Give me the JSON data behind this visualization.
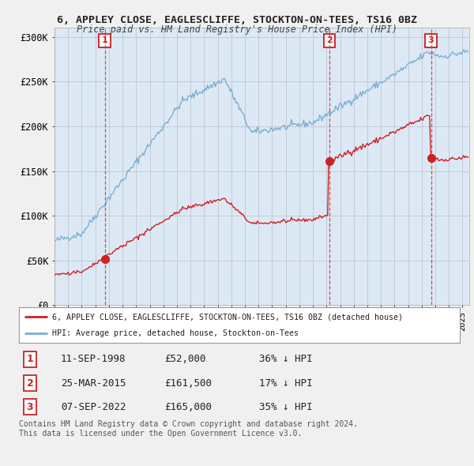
{
  "title_line1": "6, APPLEY CLOSE, EAGLESCLIFFE, STOCKTON-ON-TEES, TS16 0BZ",
  "title_line2": "Price paid vs. HM Land Registry's House Price Index (HPI)",
  "ylim": [
    0,
    310000
  ],
  "yticks": [
    0,
    50000,
    100000,
    150000,
    200000,
    250000,
    300000
  ],
  "ytick_labels": [
    "£0",
    "£50K",
    "£100K",
    "£150K",
    "£200K",
    "£250K",
    "£300K"
  ],
  "sale_dates": [
    "1998-09-11",
    "2015-03-25",
    "2022-09-07"
  ],
  "sale_prices": [
    52000,
    161500,
    165000
  ],
  "sale_labels": [
    "1",
    "2",
    "3"
  ],
  "hpi_color": "#7bafd4",
  "hpi_fill_color": "#dce9f5",
  "price_color": "#cc2222",
  "vline_color": "#cc3333",
  "legend_line1": "6, APPLEY CLOSE, EAGLESCLIFFE, STOCKTON-ON-TEES, TS16 0BZ (detached house)",
  "legend_line2": "HPI: Average price, detached house, Stockton-on-Tees",
  "table_data": [
    [
      "1",
      "11-SEP-1998",
      "£52,000",
      "36% ↓ HPI"
    ],
    [
      "2",
      "25-MAR-2015",
      "£161,500",
      "17% ↓ HPI"
    ],
    [
      "3",
      "07-SEP-2022",
      "£165,000",
      "35% ↓ HPI"
    ]
  ],
  "footnote": "Contains HM Land Registry data © Crown copyright and database right 2024.\nThis data is licensed under the Open Government Licence v3.0.",
  "bg_color": "#f0f0f0",
  "plot_bg_color": "#dce9f5",
  "grid_color": "#bbbbcc",
  "x_start_year": 1995,
  "x_end_year": 2025
}
